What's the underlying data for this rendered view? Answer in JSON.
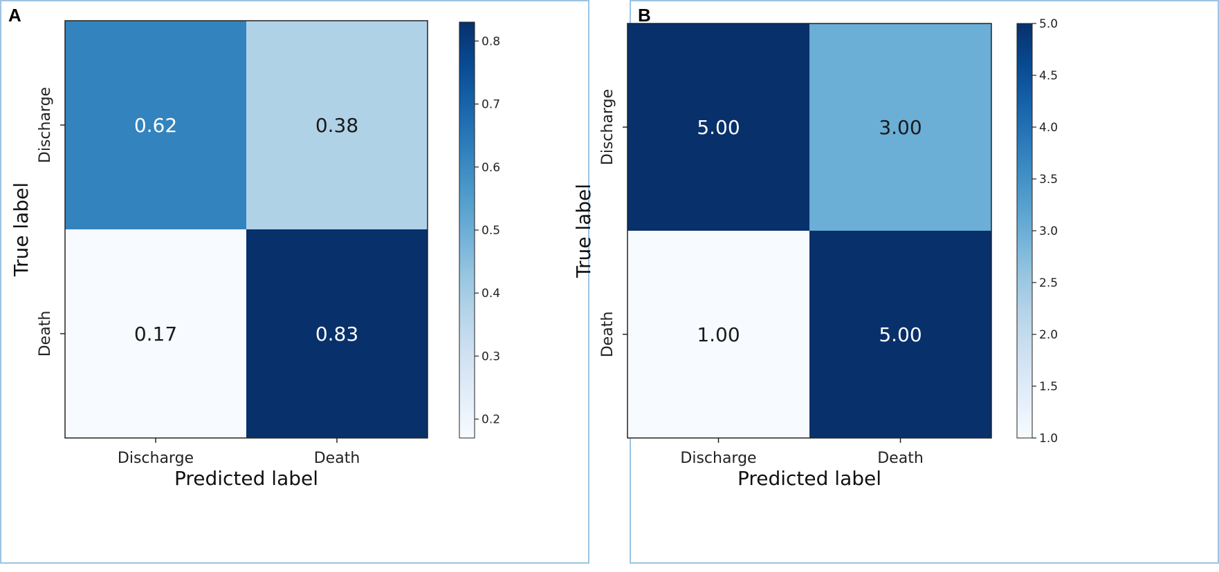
{
  "chart_data": [
    {
      "type": "heatmap",
      "panel_label": "A",
      "x_categories": [
        "Discharge",
        "Death"
      ],
      "y_categories": [
        "Discharge",
        "Death"
      ],
      "values": [
        [
          0.62,
          0.38
        ],
        [
          0.17,
          0.83
        ]
      ],
      "cell_labels": [
        [
          "0.62",
          "0.38"
        ],
        [
          "0.17",
          "0.83"
        ]
      ],
      "xlabel": "Predicted label",
      "ylabel": "True label",
      "colormap": "Blues",
      "colorbar": {
        "min": 0.17,
        "max": 0.83,
        "ticks": [
          0.2,
          0.3,
          0.4,
          0.5,
          0.6,
          0.7,
          0.8
        ],
        "tick_labels": [
          "0.2",
          "0.3",
          "0.4",
          "0.5",
          "0.6",
          "0.7",
          "0.8"
        ]
      }
    },
    {
      "type": "heatmap",
      "panel_label": "B",
      "x_categories": [
        "Discharge",
        "Death"
      ],
      "y_categories": [
        "Discharge",
        "Death"
      ],
      "values": [
        [
          5.0,
          3.0
        ],
        [
          1.0,
          5.0
        ]
      ],
      "cell_labels": [
        [
          "5.00",
          "3.00"
        ],
        [
          "1.00",
          "5.00"
        ]
      ],
      "xlabel": "Predicted label",
      "ylabel": "True label",
      "colormap": "Blues",
      "colorbar": {
        "min": 1.0,
        "max": 5.0,
        "ticks": [
          1.0,
          1.5,
          2.0,
          2.5,
          3.0,
          3.5,
          4.0,
          4.5,
          5.0
        ],
        "tick_labels": [
          "1.0",
          "1.5",
          "2.0",
          "2.5",
          "3.0",
          "3.5",
          "4.0",
          "4.5",
          "5.0"
        ]
      }
    }
  ],
  "colors": {
    "panel_border": "#9cc3e3",
    "text_dark": "#1a1a1a",
    "text_light": "#ffffff"
  }
}
